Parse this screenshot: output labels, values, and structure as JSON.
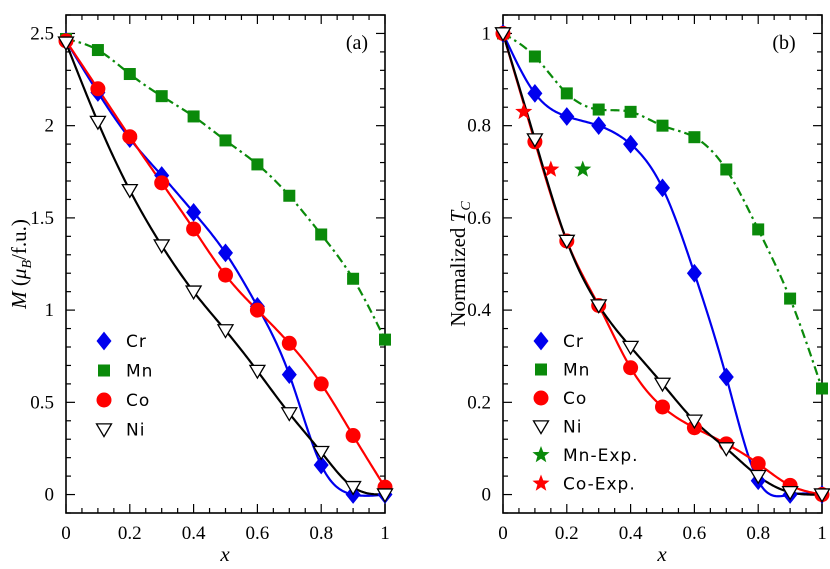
{
  "chart_data": [
    {
      "type": "line",
      "panel_label": "(a)",
      "ylabel": "M (μ_B/f.u.)",
      "ylabel_parts": {
        "pre": "M",
        "open": " (",
        "mu": "μ",
        "sub": "B",
        "post": "/f.u.)"
      },
      "xlabel": "x",
      "xlim": [
        0,
        1
      ],
      "ylim": [
        -0.1,
        2.6
      ],
      "xticks": [
        0,
        0.2,
        0.4,
        0.6,
        0.8,
        1
      ],
      "xtick_labels": [
        "0",
        "0.2",
        "0.4",
        "0.6",
        "0.8",
        "1"
      ],
      "yticks": [
        0,
        0.5,
        1,
        1.5,
        2,
        2.5
      ],
      "ytick_labels": [
        "0",
        "0.5",
        "1",
        "1.5",
        "2",
        "2.5"
      ],
      "legend_position": "bottom-left",
      "series": [
        {
          "name": "Cr",
          "color": "#0000ee",
          "marker": "diamond",
          "line": "solid",
          "x": [
            0,
            0.1,
            0.2,
            0.3,
            0.4,
            0.5,
            0.6,
            0.7,
            0.8,
            0.9,
            1
          ],
          "y": [
            2.46,
            2.18,
            1.93,
            1.73,
            1.53,
            1.31,
            1.02,
            0.65,
            0.16,
            0.0,
            0.0
          ]
        },
        {
          "name": "Mn",
          "color": "#0a8a0a",
          "marker": "square",
          "line": "dashdot",
          "x": [
            0,
            0.1,
            0.2,
            0.3,
            0.4,
            0.5,
            0.6,
            0.7,
            0.8,
            0.9,
            1
          ],
          "y": [
            2.47,
            2.41,
            2.28,
            2.16,
            2.05,
            1.92,
            1.79,
            1.62,
            1.41,
            1.17,
            0.84
          ]
        },
        {
          "name": "Co",
          "color": "#ff0000",
          "marker": "circle",
          "line": "solid",
          "x": [
            0,
            0.1,
            0.2,
            0.3,
            0.4,
            0.5,
            0.6,
            0.7,
            0.8,
            0.9,
            1
          ],
          "y": [
            2.46,
            2.2,
            1.94,
            1.69,
            1.44,
            1.19,
            1.0,
            0.82,
            0.6,
            0.32,
            0.04
          ]
        },
        {
          "name": "Ni",
          "color": "#000000",
          "marker": "triangle-down-open",
          "line": "solid",
          "x": [
            0,
            0.1,
            0.2,
            0.3,
            0.4,
            0.5,
            0.6,
            0.7,
            0.8,
            0.9,
            1
          ],
          "y": [
            2.45,
            2.02,
            1.65,
            1.35,
            1.1,
            0.89,
            0.67,
            0.44,
            0.23,
            0.04,
            0.0
          ]
        }
      ]
    },
    {
      "type": "line",
      "panel_label": "(b)",
      "ylabel": "Normalized T_C",
      "ylabel_parts": {
        "pre": "Normalized ",
        "T": "T",
        "sub": "C"
      },
      "xlabel": "x",
      "xlim": [
        0,
        1
      ],
      "ylim": [
        -0.04,
        1.04
      ],
      "xticks": [
        0,
        0.2,
        0.4,
        0.6,
        0.8,
        1
      ],
      "xtick_labels": [
        "0",
        "0.2",
        "0.4",
        "0.6",
        "0.8",
        "1"
      ],
      "yticks": [
        0,
        0.2,
        0.4,
        0.6,
        0.8,
        1
      ],
      "ytick_labels": [
        "0",
        "0.2",
        "0.4",
        "0.6",
        "0.8",
        "1"
      ],
      "legend_position": "bottom-left",
      "series": [
        {
          "name": "Cr",
          "color": "#0000ee",
          "marker": "diamond",
          "line": "solid",
          "x": [
            0,
            0.1,
            0.2,
            0.3,
            0.4,
            0.5,
            0.6,
            0.7,
            0.8,
            0.9,
            1
          ],
          "y": [
            1.0,
            0.87,
            0.82,
            0.8,
            0.76,
            0.665,
            0.48,
            0.255,
            0.03,
            0.0,
            0.0
          ]
        },
        {
          "name": "Mn",
          "color": "#0a8a0a",
          "marker": "square",
          "line": "dashdot",
          "x": [
            0,
            0.1,
            0.2,
            0.3,
            0.4,
            0.5,
            0.6,
            0.7,
            0.8,
            0.9,
            1
          ],
          "y": [
            1.0,
            0.95,
            0.87,
            0.835,
            0.83,
            0.8,
            0.775,
            0.705,
            0.575,
            0.425,
            0.23
          ]
        },
        {
          "name": "Co",
          "color": "#ff0000",
          "marker": "circle",
          "line": "solid",
          "x": [
            0,
            0.1,
            0.2,
            0.3,
            0.4,
            0.5,
            0.6,
            0.7,
            0.8,
            0.9,
            1
          ],
          "y": [
            1.0,
            0.765,
            0.55,
            0.41,
            0.275,
            0.19,
            0.145,
            0.11,
            0.067,
            0.02,
            0.0
          ]
        },
        {
          "name": "Ni",
          "color": "#000000",
          "marker": "triangle-down-open",
          "line": "solid",
          "x": [
            0,
            0.1,
            0.2,
            0.3,
            0.4,
            0.5,
            0.6,
            0.7,
            0.8,
            0.9,
            1
          ],
          "y": [
            1.0,
            0.77,
            0.55,
            0.41,
            0.32,
            0.24,
            0.16,
            0.1,
            0.04,
            0.005,
            0.0
          ]
        },
        {
          "name": "Mn-Exp.",
          "color": "#0a8a0a",
          "marker": "star",
          "line": "none",
          "x": [
            0.25
          ],
          "y": [
            0.705
          ]
        },
        {
          "name": "Co-Exp.",
          "color": "#ff0000",
          "marker": "star",
          "line": "none",
          "x": [
            0.065,
            0.15
          ],
          "y": [
            0.83,
            0.705
          ]
        }
      ]
    }
  ]
}
